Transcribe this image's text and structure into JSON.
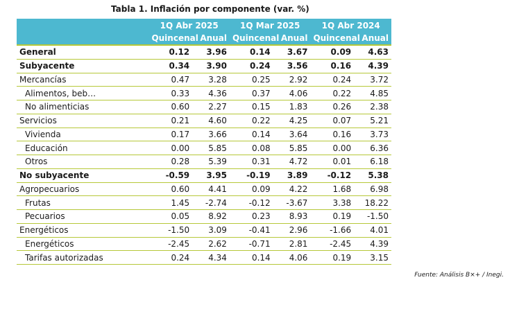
{
  "title": "Tabla 1. Inflación por componente (var. %)",
  "periods": [
    "1Q Abr 2025",
    "1Q Mar 2025",
    "1Q Abr 2024"
  ],
  "subheaders": [
    "Quincenal",
    "Anual",
    "Quincenal",
    "Anual",
    "Quincenal",
    "Anual"
  ],
  "rows": [
    {
      "label": "General",
      "values": [
        "0.12",
        "3.96",
        "0.14",
        "3.67",
        "0.09",
        "4.63"
      ]
    },
    {
      "label": "Subyacente",
      "values": [
        "0.34",
        "3.90",
        "0.24",
        "3.56",
        "0.16",
        "4.39"
      ]
    },
    {
      "label": "Mercancías",
      "values": [
        "0.47",
        "3.28",
        "0.25",
        "2.92",
        "0.24",
        "3.72"
      ]
    },
    {
      "label": "Alimentos, beb…",
      "values": [
        "0.33",
        "4.36",
        "0.37",
        "4.06",
        "0.22",
        "4.85"
      ]
    },
    {
      "label": "No alimenticias",
      "values": [
        "0.60",
        "2.27",
        "0.15",
        "1.83",
        "0.26",
        "2.38"
      ]
    },
    {
      "label": "Servicios",
      "values": [
        "0.21",
        "4.60",
        "0.22",
        "4.25",
        "0.07",
        "5.21"
      ]
    },
    {
      "label": "Vivienda",
      "values": [
        "0.17",
        "3.66",
        "0.14",
        "3.64",
        "0.16",
        "3.73"
      ]
    },
    {
      "label": "Educación",
      "values": [
        "0.00",
        "5.85",
        "0.08",
        "5.85",
        "0.00",
        "6.36"
      ]
    },
    {
      "label": "Otros",
      "values": [
        "0.28",
        "5.39",
        "0.31",
        "4.72",
        "0.01",
        "6.18"
      ]
    },
    {
      "label": "No subyacente",
      "values": [
        "-0.59",
        "3.95",
        "-0.19",
        "3.89",
        "-0.12",
        "5.38"
      ]
    },
    {
      "label": "Agropecuarios",
      "values": [
        "0.60",
        "4.41",
        "0.09",
        "4.22",
        "1.68",
        "6.98"
      ]
    },
    {
      "label": "Frutas",
      "values": [
        "1.45",
        "-2.74",
        "-0.12",
        "-3.67",
        "3.38",
        "18.22"
      ]
    },
    {
      "label": "Pecuarios",
      "values": [
        "0.05",
        "8.92",
        "0.23",
        "8.93",
        "0.19",
        "-1.50"
      ]
    },
    {
      "label": "Energéticos",
      "values": [
        "-1.50",
        "3.09",
        "-0.41",
        "2.96",
        "-1.66",
        "4.01"
      ]
    },
    {
      "label": "Energéticos",
      "values": [
        "-2.45",
        "2.62",
        "-0.71",
        "2.81",
        "-2.45",
        "4.39"
      ]
    },
    {
      "label": "Tarifas autorizadas",
      "values": [
        "0.24",
        "4.34",
        "0.14",
        "4.06",
        "0.19",
        "3.15"
      ]
    }
  ],
  "source": "Fuente: Análisis B×+ / Inegi."
}
